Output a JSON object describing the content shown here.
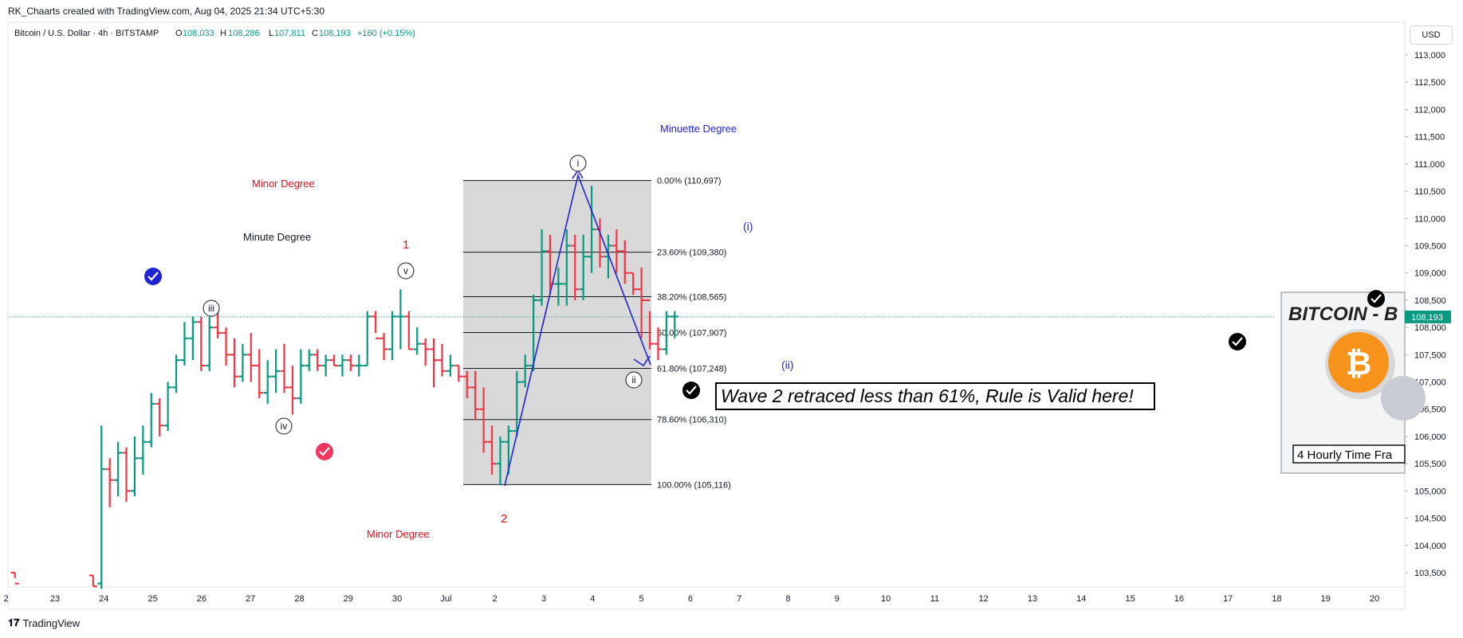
{
  "header": {
    "attribution": "RK_Chaarts created with TradingView.com, Aug 04, 2025 21:34 UTC+5:30"
  },
  "footer": {
    "brand": "TradingView"
  },
  "symbol_bar": {
    "symbol": "Bitcoin / U.S. Dollar · 4h · BITSTAMP",
    "o_label": "O",
    "o_value": "108,033",
    "h_label": "H",
    "h_value": "108,286",
    "l_label": "L",
    "l_value": "107,811",
    "c_label": "C",
    "c_value": "108,193",
    "change": "+160 (+0.15%)"
  },
  "currency": "USD",
  "colors": {
    "up": "#089981",
    "down": "#f23645",
    "blue": "#2124d4",
    "red_text": "#e0101a",
    "fib_fill": "#d9d9d9",
    "price_line": "#089981"
  },
  "chart_data": {
    "type": "ohlc",
    "title": "Bitcoin / U.S. Dollar · 4h · BITSTAMP",
    "ylim": [
      103000,
      113300
    ],
    "y_ticks": [
      103500,
      104000,
      104500,
      105000,
      105500,
      106000,
      106500,
      107000,
      107500,
      108000,
      108500,
      109000,
      109500,
      110000,
      110500,
      111000,
      111500,
      112000,
      112500,
      113000
    ],
    "y_tick_labels": [
      "103,500",
      "104,000",
      "104,500",
      "105,000",
      "105,500",
      "106,000",
      "106,500",
      "107,000",
      "107,500",
      "108,000",
      "108,500",
      "109,000",
      "109,500",
      "110,000",
      "110,500",
      "111,000",
      "111,500",
      "112,000",
      "112,500",
      "113,000"
    ],
    "x_ticks": [
      "2",
      "23",
      "24",
      "25",
      "26",
      "27",
      "28",
      "29",
      "30",
      "Jul",
      "2",
      "3",
      "4",
      "5",
      "6",
      "7",
      "8",
      "9",
      "10",
      "11",
      "12",
      "13",
      "14",
      "15",
      "16",
      "17",
      "18",
      "19",
      "20"
    ],
    "x_tick_days": [
      -1,
      0,
      1,
      2,
      3,
      4,
      5,
      6,
      7,
      8,
      9,
      10,
      11,
      12,
      13,
      14,
      15,
      16,
      17,
      18,
      19,
      20,
      21,
      22,
      23,
      24,
      25,
      26,
      27
    ],
    "current_price": 108193,
    "current_price_label": "108,193",
    "bars": [
      [
        -0.82,
        103500,
        103400,
        103500,
        103300
      ],
      [
        0.78,
        103450,
        103450,
        103250,
        103250
      ],
      [
        0.95,
        103300,
        106200,
        103200,
        105400
      ],
      [
        1.12,
        105400,
        105600,
        104700,
        105200
      ],
      [
        1.29,
        105200,
        105900,
        104900,
        105700
      ],
      [
        1.46,
        105700,
        105800,
        104800,
        105000
      ],
      [
        1.63,
        105000,
        106000,
        104900,
        105600
      ],
      [
        1.8,
        105600,
        106200,
        105300,
        105900
      ],
      [
        1.97,
        105900,
        106800,
        105800,
        106600
      ],
      [
        2.14,
        106600,
        106700,
        106000,
        106200
      ],
      [
        2.31,
        106200,
        107000,
        106100,
        106900
      ],
      [
        2.48,
        106900,
        107500,
        106800,
        107400
      ],
      [
        2.65,
        107400,
        108100,
        107300,
        107800
      ],
      [
        2.82,
        107800,
        108200,
        107400,
        108100
      ],
      [
        2.99,
        108100,
        108200,
        107200,
        107300
      ],
      [
        3.16,
        107300,
        108200,
        107200,
        108000
      ],
      [
        3.33,
        108000,
        108300,
        107800,
        107900
      ],
      [
        3.5,
        107900,
        108000,
        107300,
        107500
      ],
      [
        3.67,
        107500,
        107800,
        106900,
        107100
      ],
      [
        3.84,
        107100,
        107700,
        107000,
        107500
      ],
      [
        4.01,
        107500,
        107900,
        107000,
        107300
      ],
      [
        4.18,
        107300,
        107600,
        106700,
        106800
      ],
      [
        4.35,
        106800,
        107400,
        106600,
        107100
      ],
      [
        4.52,
        107100,
        107600,
        106800,
        107200
      ],
      [
        4.69,
        107200,
        107700,
        106800,
        106900
      ],
      [
        4.86,
        106900,
        107300,
        106400,
        106700
      ],
      [
        5.03,
        106700,
        107600,
        106600,
        107300
      ],
      [
        5.2,
        107300,
        107600,
        107200,
        107500
      ],
      [
        5.37,
        107500,
        107600,
        107200,
        107300
      ],
      [
        5.54,
        107300,
        107500,
        107100,
        107400
      ],
      [
        5.71,
        107400,
        107500,
        107300,
        107300
      ],
      [
        5.88,
        107300,
        107500,
        107100,
        107400
      ],
      [
        6.05,
        107400,
        107500,
        107200,
        107300
      ],
      [
        6.22,
        107300,
        107500,
        107100,
        107300
      ],
      [
        6.39,
        107300,
        108300,
        107300,
        108200
      ],
      [
        6.56,
        108200,
        108300,
        107900,
        107800
      ],
      [
        6.73,
        107800,
        107900,
        107400,
        107600
      ],
      [
        6.9,
        107600,
        108300,
        107400,
        108200
      ],
      [
        7.07,
        108200,
        108700,
        107600,
        108200
      ],
      [
        7.24,
        108200,
        108300,
        107600,
        107600
      ],
      [
        7.41,
        107600,
        108000,
        107500,
        107700
      ],
      [
        7.58,
        107700,
        107800,
        107300,
        107600
      ],
      [
        7.75,
        107600,
        107800,
        106900,
        107400
      ],
      [
        7.92,
        107400,
        107700,
        107100,
        107200
      ],
      [
        8.09,
        107200,
        107500,
        107100,
        107300
      ],
      [
        8.26,
        107300,
        107300,
        107000,
        107100
      ],
      [
        8.43,
        107100,
        107200,
        106700,
        106900
      ],
      [
        8.6,
        106900,
        107200,
        106300,
        106500
      ],
      [
        8.77,
        106500,
        106900,
        105700,
        105900
      ],
      [
        8.94,
        105900,
        106200,
        105300,
        105500
      ],
      [
        9.11,
        105500,
        106000,
        105100,
        105900
      ],
      [
        9.28,
        105900,
        106200,
        105300,
        106100
      ],
      [
        9.45,
        106100,
        107200,
        106000,
        107000
      ],
      [
        9.62,
        107000,
        107500,
        106900,
        107300
      ],
      [
        9.79,
        107300,
        108600,
        107200,
        108500
      ],
      [
        9.96,
        108500,
        109800,
        108400,
        109400
      ],
      [
        10.13,
        109400,
        109700,
        108600,
        108800
      ],
      [
        10.3,
        108800,
        109100,
        108400,
        108800
      ],
      [
        10.47,
        108800,
        109800,
        108400,
        109500
      ],
      [
        10.64,
        109500,
        109700,
        108500,
        108700
      ],
      [
        10.81,
        108700,
        109700,
        108500,
        109300
      ],
      [
        10.98,
        109300,
        110600,
        109000,
        109800
      ],
      [
        11.15,
        109800,
        110000,
        109100,
        109300
      ],
      [
        11.32,
        109300,
        109700,
        108900,
        109500
      ],
      [
        11.49,
        109500,
        109800,
        109000,
        109400
      ],
      [
        11.66,
        109400,
        109600,
        108800,
        109000
      ],
      [
        11.83,
        109000,
        109000,
        108600,
        108700
      ],
      [
        12.0,
        108700,
        109100,
        107800,
        108500
      ],
      [
        12.17,
        108500,
        108300,
        107600,
        107700
      ],
      [
        12.34,
        107700,
        108000,
        107400,
        107600
      ],
      [
        12.51,
        107600,
        108300,
        107500,
        108200
      ],
      [
        12.68,
        108200,
        108300,
        107800,
        108200
      ]
    ]
  },
  "annotations": {
    "minor_degree_top": "Minor Degree",
    "minor_degree_bottom": "Minor Degree",
    "minute_degree": "Minute Degree",
    "minuette_degree": "Minuette Degree",
    "wave_1": "1",
    "wave_2": "2",
    "wave_iii": "iii",
    "wave_iv": "iv",
    "wave_v": "v",
    "wave_i_circ": "i",
    "wave_ii_circ": "ii",
    "wave_i_paren": "(i)",
    "wave_ii_paren": "(ii)",
    "rule_text": "Wave 2 retraced less than 61%, Rule is Valid here!",
    "card_title": "BITCOIN - B",
    "card_caption": "4 Hourly Time Fra",
    "card_coin_symbol": "₿"
  },
  "fib_levels": [
    {
      "ratio": "0.00%",
      "price": 110697,
      "label": "0.00% (110,697)"
    },
    {
      "ratio": "23.60%",
      "price": 109380,
      "label": "23.60% (109,380)"
    },
    {
      "ratio": "38.20%",
      "price": 108565,
      "label": "38.20% (108,565)"
    },
    {
      "ratio": "50.00%",
      "price": 107907,
      "label": "50.00% (107,907)"
    },
    {
      "ratio": "61.80%",
      "price": 107248,
      "label": "61.80% (107,248)"
    },
    {
      "ratio": "78.60%",
      "price": 106310,
      "label": "78.60% (106,310)"
    },
    {
      "ratio": "100.00%",
      "price": 105116,
      "label": "100.00% (105,116)"
    }
  ]
}
